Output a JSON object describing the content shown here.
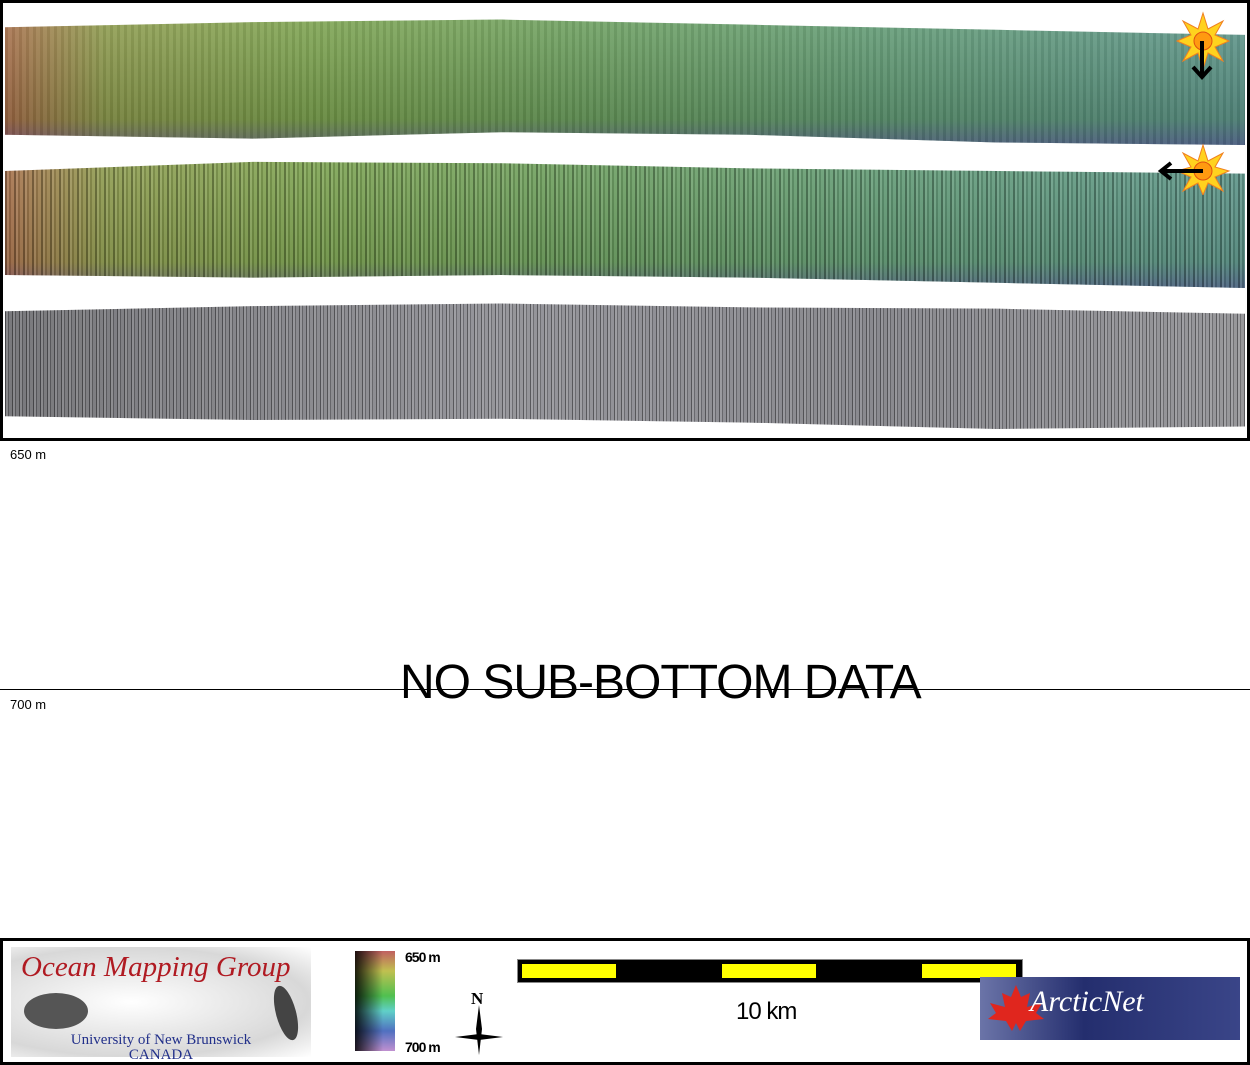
{
  "panels": {
    "bathymetry_sun_north": {
      "sun_direction": "south"
    },
    "bathymetry_sun_east": {
      "sun_direction": "west"
    },
    "backscatter": {}
  },
  "subbottom": {
    "depth_top": "650 m",
    "depth_bottom": "700 m",
    "message": "NO SUB-BOTTOM DATA"
  },
  "legend": {
    "logo_omg": {
      "title": "Ocean Mapping Group",
      "university": "University of New Brunswick",
      "country": "CANADA"
    },
    "colorbar": {
      "top_label": "650 m",
      "bottom_label": "700 m"
    },
    "north_arrow": "N",
    "scale_bar": {
      "label": "10 km",
      "segments": 5,
      "colors": [
        "#ffff00",
        "#000000"
      ]
    },
    "logo_arcticnet": "ArcticNet"
  },
  "colors": {
    "sun": "#ffcc00",
    "frame": "#000000"
  }
}
